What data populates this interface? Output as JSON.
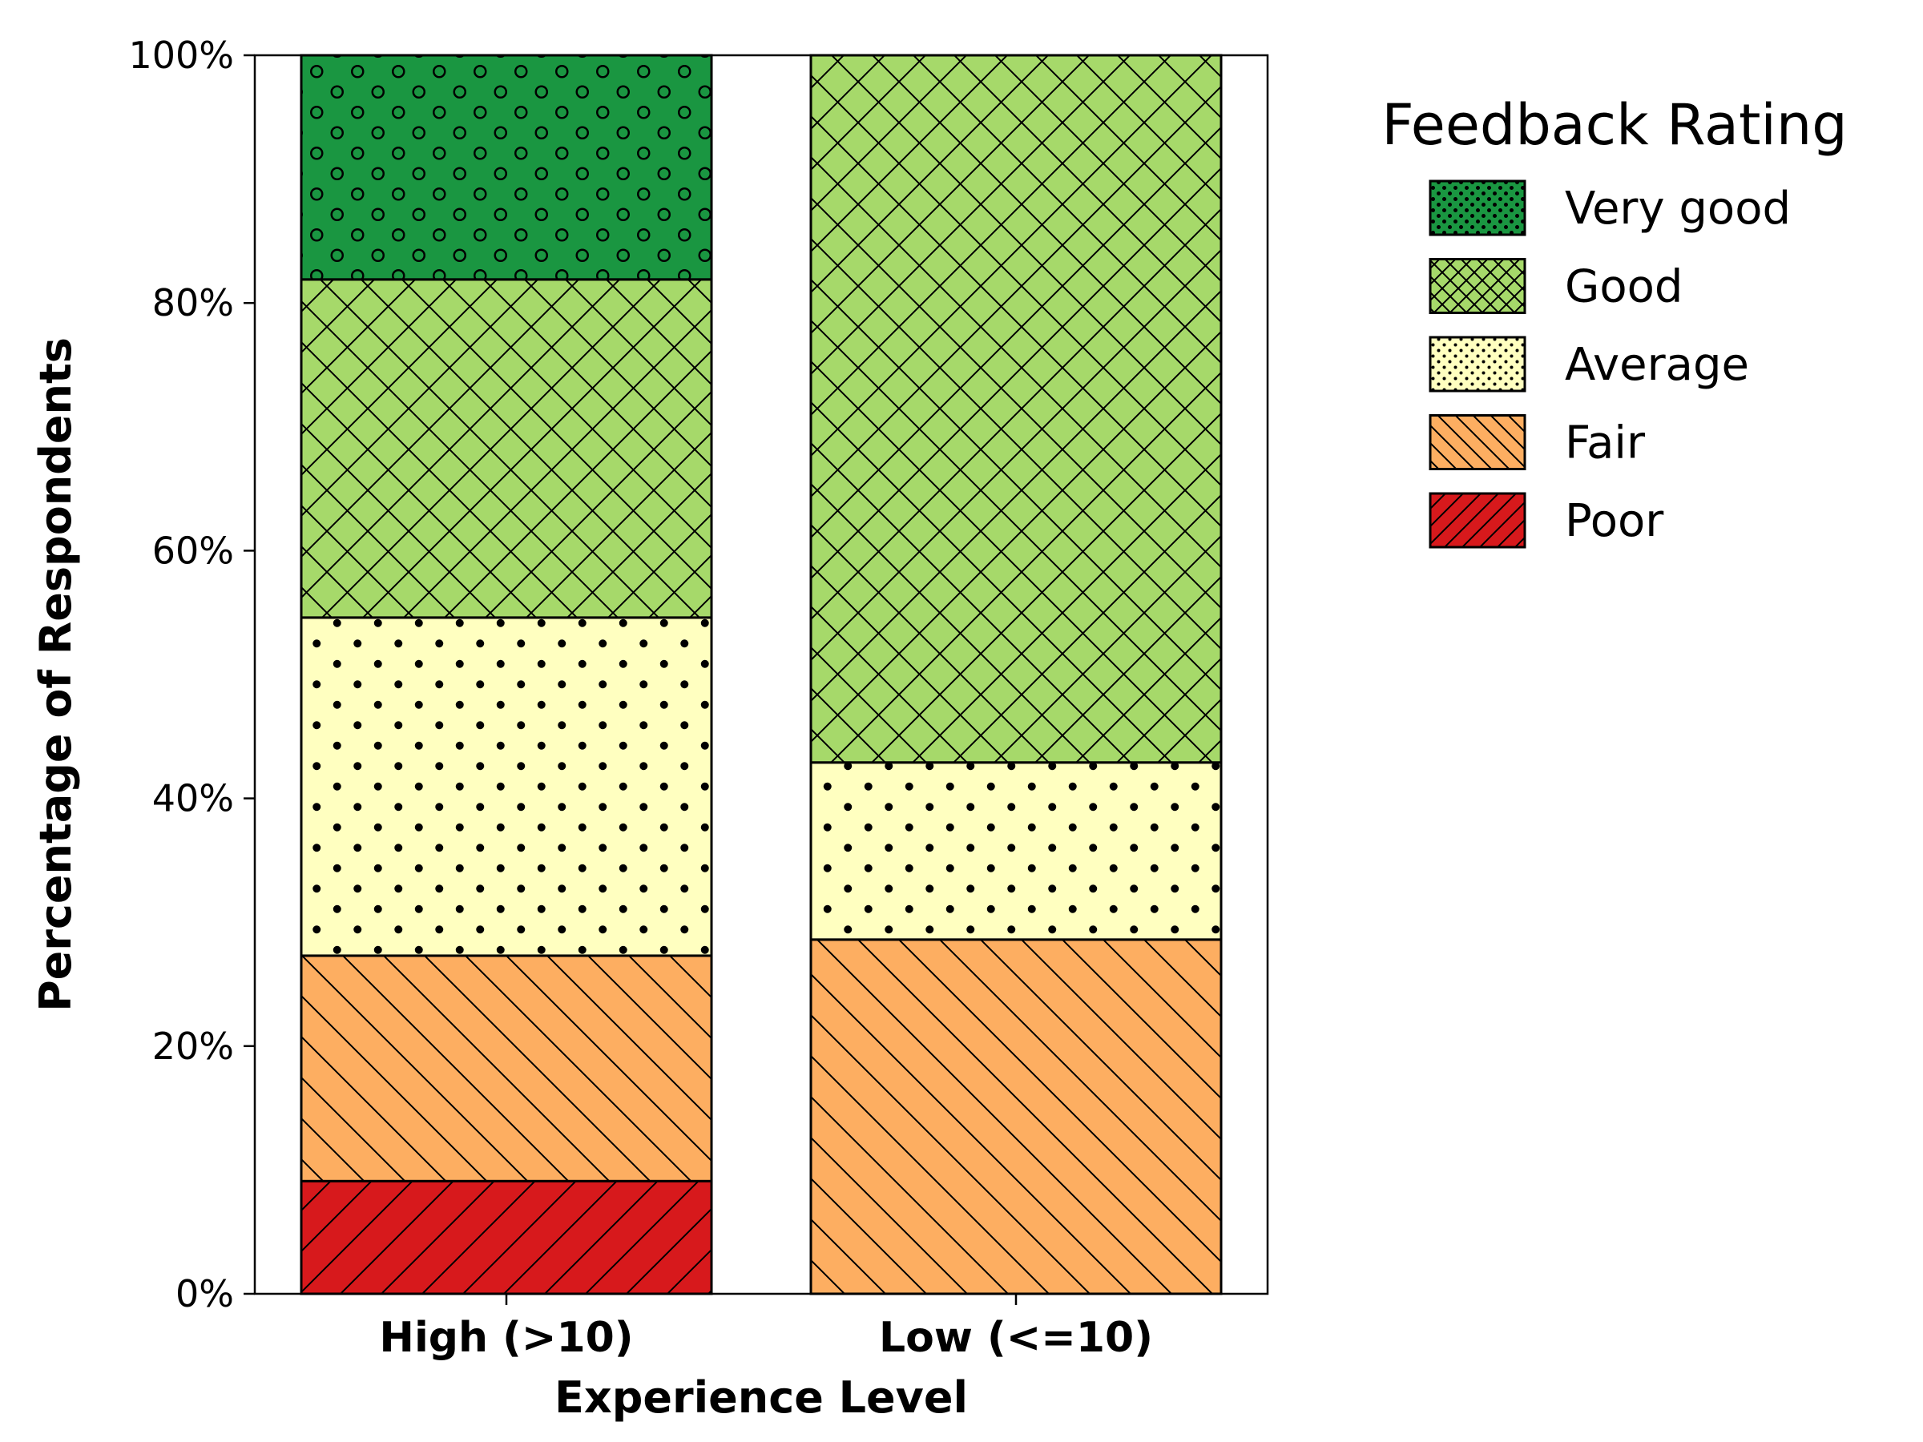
{
  "chart_data": {
    "type": "bar",
    "stacked": true,
    "percent_stacked": true,
    "categories": [
      "High (>10)",
      "Low (<=10)"
    ],
    "series": [
      {
        "name": "Poor",
        "values": [
          9.1,
          0.0
        ],
        "color": "#d7191c",
        "hatch": "forward-diagonal"
      },
      {
        "name": "Fair",
        "values": [
          18.2,
          28.6
        ],
        "color": "#fdae61",
        "hatch": "back-diagonal"
      },
      {
        "name": "Average",
        "values": [
          27.3,
          14.3
        ],
        "color": "#ffffc0",
        "hatch": "dots"
      },
      {
        "name": "Good",
        "values": [
          27.3,
          57.1
        ],
        "color": "#a6d96a",
        "hatch": "cross"
      },
      {
        "name": "Very good",
        "values": [
          18.1,
          0.0
        ],
        "color": "#1a9641",
        "hatch": "circles"
      }
    ],
    "legend_order": [
      "Very good",
      "Good",
      "Average",
      "Fair",
      "Poor"
    ],
    "xlabel": "Experience Level",
    "ylabel": "Percentage of Respondents",
    "ylim": [
      0,
      100
    ],
    "yticks": [
      "0%",
      "20%",
      "40%",
      "60%",
      "80%",
      "100%"
    ],
    "legend_title": "Feedback Rating",
    "legend_position": "outside-right-top",
    "grid": false
  }
}
